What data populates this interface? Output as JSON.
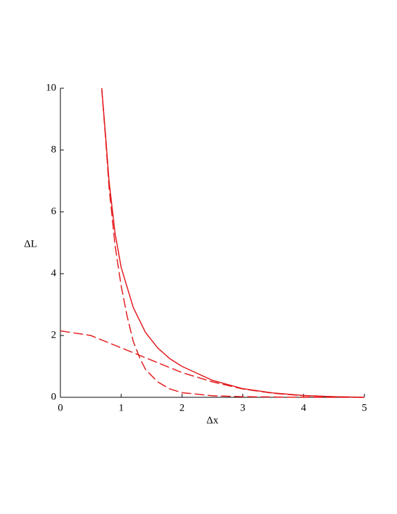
{
  "chart_data": {
    "type": "line",
    "xlabel": "Δx",
    "ylabel": "ΔL",
    "xlim": [
      0,
      5
    ],
    "ylim": [
      0,
      10
    ],
    "xticks": [
      0,
      1,
      2,
      3,
      4,
      5
    ],
    "yticks": [
      0,
      2,
      4,
      6,
      8,
      10
    ],
    "series": [
      {
        "color": "#e31a1c",
        "style": "solid",
        "x": [
          0.68,
          0.75,
          0.8,
          0.9,
          1.0,
          1.2,
          1.4,
          1.6,
          1.8,
          2.0,
          2.5,
          3.0,
          3.5,
          4.0,
          4.5,
          5.0
        ],
        "values": [
          10,
          8.3,
          7.0,
          5.3,
          4.2,
          2.9,
          2.1,
          1.6,
          1.25,
          1.0,
          0.55,
          0.28,
          0.14,
          0.06,
          0.02,
          0
        ]
      },
      {
        "color": "#e31a1c",
        "style": "dashed",
        "x": [
          0.68,
          0.75,
          0.8,
          0.9,
          1.0,
          1.1,
          1.2,
          1.3,
          1.4,
          1.6,
          1.8,
          2.0,
          2.5,
          3.0,
          4.0,
          5.0
        ],
        "values": [
          10,
          8.2,
          6.8,
          4.9,
          3.6,
          2.6,
          1.8,
          1.3,
          0.9,
          0.5,
          0.27,
          0.15,
          0.05,
          0.02,
          0,
          0
        ]
      },
      {
        "color": "#e31a1c",
        "style": "dashed",
        "x": [
          0,
          0.5,
          1.0,
          1.5,
          2.0,
          2.5,
          3.0,
          3.5,
          4.0,
          4.5,
          5.0
        ],
        "values": [
          2.15,
          2.0,
          1.6,
          1.2,
          0.8,
          0.5,
          0.27,
          0.13,
          0.05,
          0.02,
          0
        ]
      }
    ]
  }
}
